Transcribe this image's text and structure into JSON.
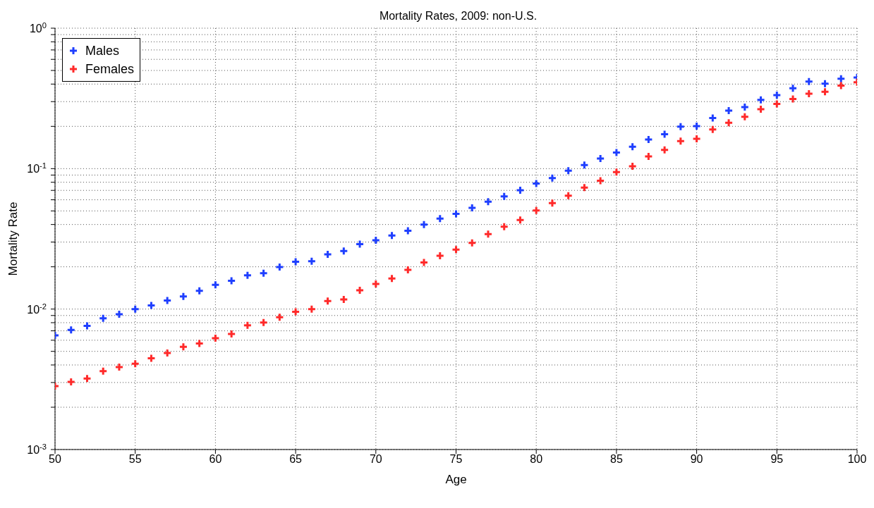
{
  "chart_data": {
    "type": "scatter",
    "title": "Mortality Rates, 2009: non-U.S.",
    "xlabel": "Age",
    "ylabel": "Mortality Rate",
    "log": "y",
    "grid": true,
    "legend": "top left",
    "marker": "cross",
    "x": [
      50,
      51,
      52,
      53,
      54,
      55,
      56,
      57,
      58,
      59,
      60,
      61,
      62,
      63,
      64,
      65,
      66,
      67,
      68,
      69,
      70,
      71,
      72,
      73,
      74,
      75,
      76,
      77,
      78,
      79,
      80,
      81,
      82,
      83,
      84,
      85,
      86,
      87,
      88,
      89,
      90,
      91,
      92,
      93,
      94,
      95,
      96,
      97,
      98,
      99,
      100
    ],
    "xlim": [
      50,
      100
    ],
    "xticks": [
      50,
      55,
      60,
      65,
      70,
      75,
      80,
      85,
      90,
      95,
      100
    ],
    "ylim": [
      0.001,
      1
    ],
    "yticks": [
      {
        "value": 0.001,
        "label": "10$^{-3}$"
      },
      {
        "value": 0.002,
        "label": null
      },
      {
        "value": 0.003,
        "label": null
      },
      {
        "value": 0.004,
        "label": null
      },
      {
        "value": 0.005,
        "label": null
      },
      {
        "value": 0.006,
        "label": null
      },
      {
        "value": 0.007,
        "label": null
      },
      {
        "value": 0.008,
        "label": null
      },
      {
        "value": 0.009,
        "label": null
      },
      {
        "value": 0.01,
        "label": "10$^{-2}$"
      },
      {
        "value": 0.02,
        "label": null
      },
      {
        "value": 0.03,
        "label": null
      },
      {
        "value": 0.04,
        "label": null
      },
      {
        "value": 0.05,
        "label": null
      },
      {
        "value": 0.06,
        "label": null
      },
      {
        "value": 0.07,
        "label": null
      },
      {
        "value": 0.08,
        "label": null
      },
      {
        "value": 0.09,
        "label": null
      },
      {
        "value": 0.1,
        "label": "10$^{-1}$"
      },
      {
        "value": 0.2,
        "label": null
      },
      {
        "value": 0.3,
        "label": null
      },
      {
        "value": 0.4,
        "label": null
      },
      {
        "value": 0.5,
        "label": null
      },
      {
        "value": 0.6,
        "label": null
      },
      {
        "value": 0.7,
        "label": null
      },
      {
        "value": 0.8,
        "label": null
      },
      {
        "value": 0.9,
        "label": null
      },
      {
        "value": 1,
        "label": "10$^{0}$"
      }
    ],
    "series": [
      {
        "name": "Males",
        "color": "#1f3fff",
        "values": [
          0.0065,
          0.0071,
          0.0076,
          0.0086,
          0.0092,
          0.01,
          0.0106,
          0.0115,
          0.0123,
          0.0135,
          0.0149,
          0.0159,
          0.0174,
          0.018,
          0.0199,
          0.0217,
          0.0219,
          0.0245,
          0.0259,
          0.029,
          0.0309,
          0.0334,
          0.0361,
          0.0399,
          0.0441,
          0.0476,
          0.0526,
          0.0581,
          0.0635,
          0.0702,
          0.0784,
          0.0857,
          0.0968,
          0.106,
          0.118,
          0.13,
          0.143,
          0.161,
          0.176,
          0.199,
          0.201,
          0.229,
          0.259,
          0.274,
          0.309,
          0.334,
          0.373,
          0.417,
          0.403,
          0.436,
          0.446
        ]
      },
      {
        "name": "Females",
        "color": "#ff2a2a",
        "values": [
          0.00283,
          0.00303,
          0.0032,
          0.00361,
          0.00386,
          0.00408,
          0.00446,
          0.00487,
          0.00538,
          0.00569,
          0.00621,
          0.00664,
          0.00767,
          0.00802,
          0.00876,
          0.00957,
          0.01,
          0.0114,
          0.0117,
          0.0136,
          0.0151,
          0.0165,
          0.019,
          0.0215,
          0.024,
          0.0265,
          0.0296,
          0.0342,
          0.0386,
          0.0431,
          0.0503,
          0.0569,
          0.0642,
          0.0733,
          0.0819,
          0.0946,
          0.104,
          0.122,
          0.136,
          0.157,
          0.163,
          0.19,
          0.212,
          0.234,
          0.265,
          0.289,
          0.313,
          0.342,
          0.353,
          0.39,
          0.412
        ]
      }
    ]
  }
}
